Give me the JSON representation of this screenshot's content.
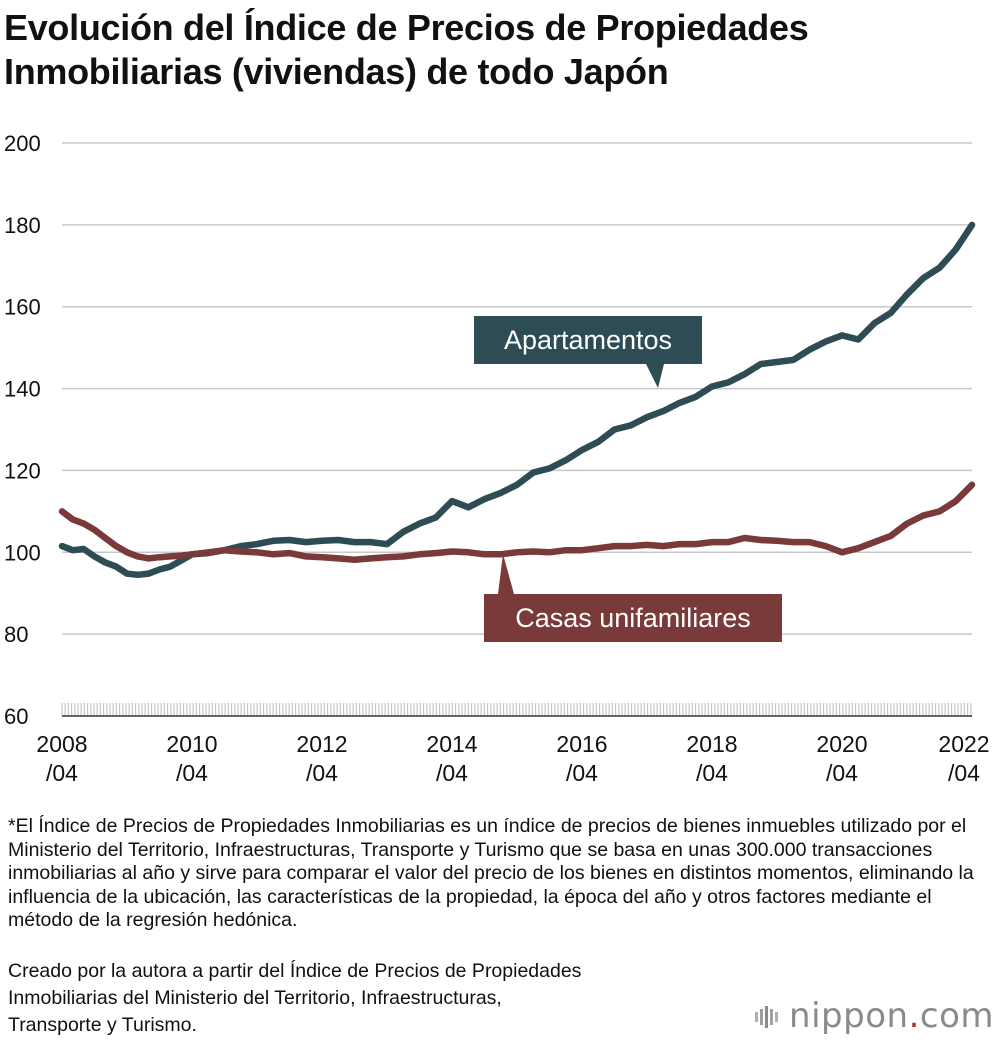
{
  "title_lines": [
    "Evolución del Índice de Precios de Propiedades",
    "Inmobiliarias (viviendas) de todo Japón"
  ],
  "footnote": "*El Índice de Precios de Propiedades Inmobiliarias es un índice de precios de bienes inmuebles utilizado por el Ministerio del Territorio, Infraestructuras, Transporte y Turismo que se basa en unas 300.000 transacciones inmobiliarias al año y sirve para comparar el valor del precio de los bienes en distintos momentos, eliminando la influencia de la ubicación, las características de la propiedad, la época del año y otros factores mediante el método de la regresión hedónica.",
  "source_lines": [
    "Creado por la autora a partir del Índice de Precios de Propiedades",
    "Inmobiliarias del Ministerio del Territorio, Infraestructuras,",
    "Transporte y Turismo."
  ],
  "logo": {
    "name": "nippon",
    "dot": ".",
    "suffix": "com",
    "icon": "nippon-bars-icon"
  },
  "colors": {
    "apartments": "#2e4c53",
    "houses": "#7a3a3a",
    "grid": "#c8c8c8",
    "axis": "#333333"
  },
  "chart_data": {
    "type": "line",
    "title": "Evolución del Índice de Precios de Propiedades Inmobiliarias (viviendas) de todo Japón",
    "ylim": [
      60,
      200
    ],
    "yticks": [
      60,
      80,
      100,
      120,
      140,
      160,
      180,
      200
    ],
    "xlim": [
      "2008-04",
      "2022-04"
    ],
    "xticks": [
      {
        "year": "2008",
        "month": "/04"
      },
      {
        "year": "2010",
        "month": "/04"
      },
      {
        "year": "2012",
        "month": "/04"
      },
      {
        "year": "2014",
        "month": "/04"
      },
      {
        "year": "2016",
        "month": "/04"
      },
      {
        "year": "2018",
        "month": "/04"
      },
      {
        "year": "2020",
        "month": "/04"
      },
      {
        "year": "2022",
        "month": "/04"
      }
    ],
    "grid": true,
    "series": [
      {
        "name": "Apartamentos",
        "color": "#2e4c53",
        "points": [
          [
            "2008-04",
            101.5
          ],
          [
            "2008-06",
            100.5
          ],
          [
            "2008-08",
            100.8
          ],
          [
            "2008-10",
            99.0
          ],
          [
            "2008-12",
            97.5
          ],
          [
            "2009-02",
            96.5
          ],
          [
            "2009-04",
            94.8
          ],
          [
            "2009-06",
            94.5
          ],
          [
            "2009-08",
            94.8
          ],
          [
            "2009-10",
            95.8
          ],
          [
            "2009-12",
            96.5
          ],
          [
            "2010-02",
            98.0
          ],
          [
            "2010-04",
            99.5
          ],
          [
            "2010-07",
            99.8
          ],
          [
            "2010-10",
            100.5
          ],
          [
            "2011-01",
            101.5
          ],
          [
            "2011-04",
            102.0
          ],
          [
            "2011-07",
            102.8
          ],
          [
            "2011-10",
            103.0
          ],
          [
            "2012-01",
            102.5
          ],
          [
            "2012-04",
            102.8
          ],
          [
            "2012-07",
            103.0
          ],
          [
            "2012-10",
            102.5
          ],
          [
            "2013-01",
            102.5
          ],
          [
            "2013-04",
            102.0
          ],
          [
            "2013-07",
            105.0
          ],
          [
            "2013-10",
            107.0
          ],
          [
            "2014-01",
            108.5
          ],
          [
            "2014-04",
            112.5
          ],
          [
            "2014-07",
            111.0
          ],
          [
            "2014-10",
            113.0
          ],
          [
            "2015-01",
            114.5
          ],
          [
            "2015-04",
            116.5
          ],
          [
            "2015-07",
            119.5
          ],
          [
            "2015-10",
            120.5
          ],
          [
            "2016-01",
            122.5
          ],
          [
            "2016-04",
            125.0
          ],
          [
            "2016-07",
            127.0
          ],
          [
            "2016-10",
            130.0
          ],
          [
            "2017-01",
            131.0
          ],
          [
            "2017-04",
            133.0
          ],
          [
            "2017-07",
            134.5
          ],
          [
            "2017-10",
            136.5
          ],
          [
            "2018-01",
            138.0
          ],
          [
            "2018-04",
            140.5
          ],
          [
            "2018-07",
            141.5
          ],
          [
            "2018-10",
            143.5
          ],
          [
            "2019-01",
            146.0
          ],
          [
            "2019-04",
            146.5
          ],
          [
            "2019-07",
            147.0
          ],
          [
            "2019-10",
            149.5
          ],
          [
            "2020-01",
            151.5
          ],
          [
            "2020-04",
            153.0
          ],
          [
            "2020-07",
            152.0
          ],
          [
            "2020-10",
            156.0
          ],
          [
            "2021-01",
            158.5
          ],
          [
            "2021-04",
            163.0
          ],
          [
            "2021-07",
            167.0
          ],
          [
            "2021-10",
            169.5
          ],
          [
            "2022-01",
            174.0
          ],
          [
            "2022-04",
            180.0
          ]
        ]
      },
      {
        "name": "Casas unifamiliares",
        "color": "#7a3a3a",
        "points": [
          [
            "2008-04",
            110.0
          ],
          [
            "2008-06",
            108.0
          ],
          [
            "2008-08",
            107.0
          ],
          [
            "2008-10",
            105.5
          ],
          [
            "2008-12",
            103.5
          ],
          [
            "2009-02",
            101.5
          ],
          [
            "2009-04",
            100.0
          ],
          [
            "2009-06",
            99.0
          ],
          [
            "2009-08",
            98.5
          ],
          [
            "2009-10",
            98.8
          ],
          [
            "2009-12",
            99.0
          ],
          [
            "2010-02",
            99.2
          ],
          [
            "2010-04",
            99.5
          ],
          [
            "2010-07",
            100.0
          ],
          [
            "2010-10",
            100.5
          ],
          [
            "2011-01",
            100.2
          ],
          [
            "2011-04",
            100.0
          ],
          [
            "2011-07",
            99.5
          ],
          [
            "2011-10",
            99.8
          ],
          [
            "2012-01",
            99.0
          ],
          [
            "2012-04",
            98.8
          ],
          [
            "2012-07",
            98.5
          ],
          [
            "2012-10",
            98.2
          ],
          [
            "2013-01",
            98.5
          ],
          [
            "2013-04",
            98.8
          ],
          [
            "2013-07",
            99.0
          ],
          [
            "2013-10",
            99.5
          ],
          [
            "2014-01",
            99.8
          ],
          [
            "2014-04",
            100.2
          ],
          [
            "2014-07",
            100.0
          ],
          [
            "2014-10",
            99.5
          ],
          [
            "2015-01",
            99.5
          ],
          [
            "2015-04",
            100.0
          ],
          [
            "2015-07",
            100.2
          ],
          [
            "2015-10",
            100.0
          ],
          [
            "2016-01",
            100.5
          ],
          [
            "2016-04",
            100.5
          ],
          [
            "2016-07",
            101.0
          ],
          [
            "2016-10",
            101.5
          ],
          [
            "2017-01",
            101.5
          ],
          [
            "2017-04",
            101.8
          ],
          [
            "2017-07",
            101.5
          ],
          [
            "2017-10",
            102.0
          ],
          [
            "2018-01",
            102.0
          ],
          [
            "2018-04",
            102.5
          ],
          [
            "2018-07",
            102.5
          ],
          [
            "2018-10",
            103.5
          ],
          [
            "2019-01",
            103.0
          ],
          [
            "2019-04",
            102.8
          ],
          [
            "2019-07",
            102.5
          ],
          [
            "2019-10",
            102.5
          ],
          [
            "2020-01",
            101.5
          ],
          [
            "2020-04",
            100.0
          ],
          [
            "2020-07",
            101.0
          ],
          [
            "2020-10",
            102.5
          ],
          [
            "2021-01",
            104.0
          ],
          [
            "2021-04",
            107.0
          ],
          [
            "2021-07",
            109.0
          ],
          [
            "2021-10",
            110.0
          ],
          [
            "2022-01",
            112.5
          ],
          [
            "2022-04",
            116.5
          ]
        ]
      }
    ],
    "annotations": [
      {
        "text": "Apartamentos",
        "series": 0,
        "color": "#2e4c53",
        "placement": "above-line"
      },
      {
        "text": "Casas unifamiliares",
        "series": 1,
        "color": "#7a3a3a",
        "placement": "below-line"
      }
    ]
  }
}
